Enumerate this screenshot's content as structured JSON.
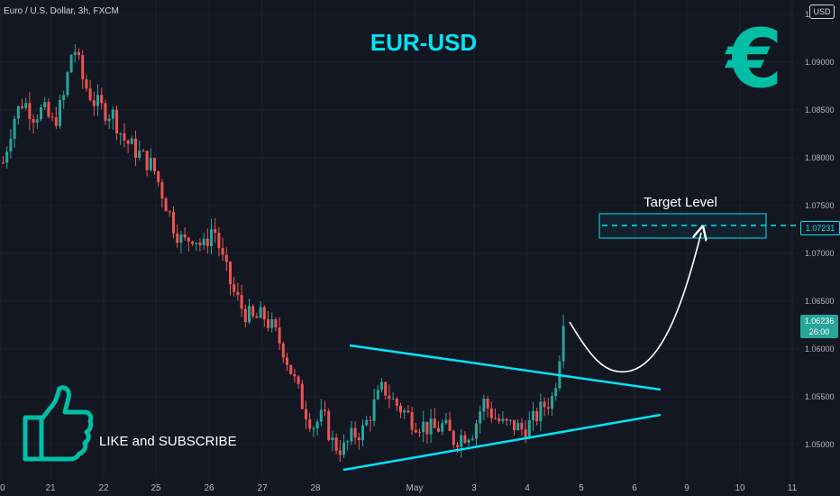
{
  "header": {
    "symbol_line": "Euro / U.S. Dollar, 3h, FXCM",
    "currency_button": "USD"
  },
  "overlay": {
    "title": "EUR-USD",
    "target_label": "Target Level",
    "cta_text": "LIKE and SUBSCRIBE",
    "euro_symbol": "€"
  },
  "price_axis": {
    "target_price": "1.07231",
    "current_price": "1.06236",
    "countdown": "26:00"
  },
  "icons": [
    "euro-sign-icon",
    "thumbs-up-icon",
    "curved-arrow-icon"
  ],
  "colors": {
    "background": "#131722",
    "up": "#26a69a",
    "down": "#ef5350",
    "trendline": "#00e5f5",
    "accent": "#00bfa5"
  },
  "chart_data": {
    "type": "candlestick",
    "title": "EUR-USD",
    "x_tick_labels": [
      "20",
      "21",
      "22",
      "25",
      "26",
      "27",
      "28",
      "May",
      "3",
      "4",
      "5",
      "6",
      "9",
      "10",
      "11"
    ],
    "y_tick_labels": [
      "1.09500",
      "1.09000",
      "1.08500",
      "1.08000",
      "1.07500",
      "1.07000",
      "1.06500",
      "1.06000",
      "1.05500",
      "1.05000"
    ],
    "ylim": [
      1.0465,
      1.0965
    ],
    "price_path": [
      1.0795,
      1.084,
      1.086,
      1.0845,
      1.085,
      1.0835,
      1.086,
      1.092,
      1.088,
      1.086,
      1.085,
      1.0845,
      1.082,
      1.081,
      1.08,
      1.079,
      1.076,
      1.073,
      1.071,
      1.072,
      1.0705,
      1.073,
      1.069,
      1.066,
      1.064,
      1.063,
      1.0635,
      1.062,
      1.06,
      1.057,
      1.054,
      1.052,
      1.053,
      1.05,
      1.0495,
      1.051,
      1.0515,
      1.054,
      1.056,
      1.0545,
      1.0535,
      1.0525,
      1.052,
      1.0515,
      1.052,
      1.0505,
      1.051,
      1.0515,
      1.0545,
      1.053,
      1.052,
      1.052,
      1.0515,
      1.0525,
      1.054,
      1.055,
      1.0624
    ],
    "triangle_upper": {
      "from": [
        28,
        1.0597
      ],
      "to": [
        6.5,
        1.0553
      ]
    },
    "triangle_lower": {
      "from": [
        28,
        1.0475
      ],
      "to": [
        6.5,
        1.0525
      ]
    },
    "target_zone": [
      1.071,
      1.0735
    ],
    "projected_path": "curve down from 1.0624 to about 1.0570 then up to the 1.07231 target level"
  }
}
